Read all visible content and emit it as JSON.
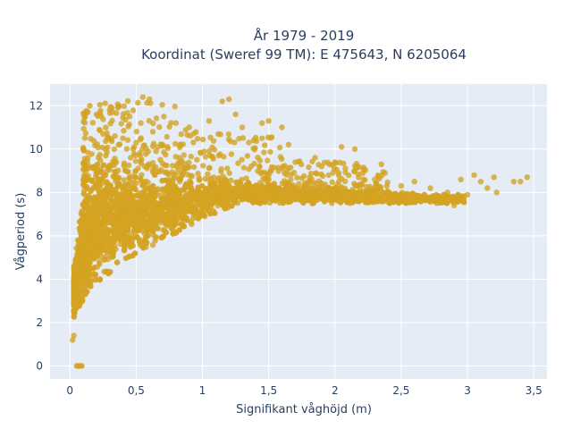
{
  "chart_data": {
    "type": "scatter",
    "title_line1": "År 1979 - 2019",
    "title_line2": "Koordinat (Sweref 99 TM): E 475643, N 6205064",
    "xlabel": "Signifikant våghöjd (m)",
    "ylabel": "Vågperiod (s)",
    "xlim": [
      -0.15,
      3.6
    ],
    "ylim": [
      -0.6,
      13.0
    ],
    "x_ticks": [
      0,
      0.5,
      1,
      1.5,
      2,
      2.5,
      3,
      3.5
    ],
    "x_tick_labels": [
      "0",
      "0,5",
      "1",
      "1,5",
      "2",
      "2,5",
      "3",
      "3,5"
    ],
    "y_ticks": [
      0,
      2,
      4,
      6,
      8,
      10,
      12
    ],
    "y_tick_labels": [
      "0",
      "2",
      "4",
      "6",
      "8",
      "10",
      "12"
    ],
    "grid": true,
    "legend": "none",
    "colors": {
      "marker": "#D4A321",
      "plot_bg": "#E5ECF6",
      "grid": "#ffffff"
    },
    "series": [
      {
        "points": [
          [
            0.05,
            0
          ],
          [
            0.07,
            0
          ],
          [
            0.09,
            0
          ],
          [
            0.06,
            0
          ],
          [
            0.08,
            0
          ],
          [
            0.15,
            12.0
          ],
          [
            0.2,
            11.6
          ],
          [
            0.3,
            11.8
          ],
          [
            0.37,
            12.0
          ],
          [
            0.55,
            12.4
          ],
          [
            0.6,
            12.3
          ],
          [
            0.45,
            11.5
          ],
          [
            0.8,
            11.2
          ],
          [
            0.9,
            11.0
          ],
          [
            1.05,
            11.3
          ],
          [
            1.15,
            12.2
          ],
          [
            1.2,
            12.3
          ],
          [
            1.25,
            11.6
          ],
          [
            1.3,
            11.0
          ],
          [
            1.45,
            11.2
          ],
          [
            1.5,
            11.3
          ],
          [
            1.6,
            11.0
          ],
          [
            1.35,
            10.3
          ],
          [
            1.45,
            10.5
          ],
          [
            1.65,
            10.2
          ],
          [
            1.7,
            9.4
          ],
          [
            1.9,
            9.2
          ],
          [
            2.05,
            10.1
          ],
          [
            2.15,
            10.0
          ],
          [
            1.85,
            9.6
          ],
          [
            2.0,
            9.4
          ],
          [
            2.3,
            8.6
          ],
          [
            2.35,
            9.3
          ],
          [
            2.5,
            8.3
          ],
          [
            2.6,
            8.5
          ],
          [
            2.72,
            8.2
          ],
          [
            2.8,
            7.7
          ],
          [
            2.85,
            8.0
          ],
          [
            2.9,
            7.4
          ],
          [
            2.95,
            8.6
          ],
          [
            3.0,
            7.9
          ],
          [
            3.05,
            8.8
          ],
          [
            3.1,
            8.5
          ],
          [
            3.15,
            8.2
          ],
          [
            3.2,
            8.7
          ],
          [
            3.22,
            8.0
          ],
          [
            3.35,
            8.5
          ],
          [
            3.4,
            8.5
          ],
          [
            3.45,
            8.7
          ],
          [
            0.4,
            10.5
          ],
          [
            0.25,
            10.7
          ],
          [
            0.5,
            10.3
          ],
          [
            0.35,
            9.4
          ],
          [
            0.65,
            9.9
          ],
          [
            0.7,
            10.2
          ],
          [
            0.02,
            1.2
          ],
          [
            0.03,
            1.4
          ],
          [
            0.04,
            2.6
          ],
          [
            0.06,
            3.5
          ]
        ]
      }
    ]
  }
}
